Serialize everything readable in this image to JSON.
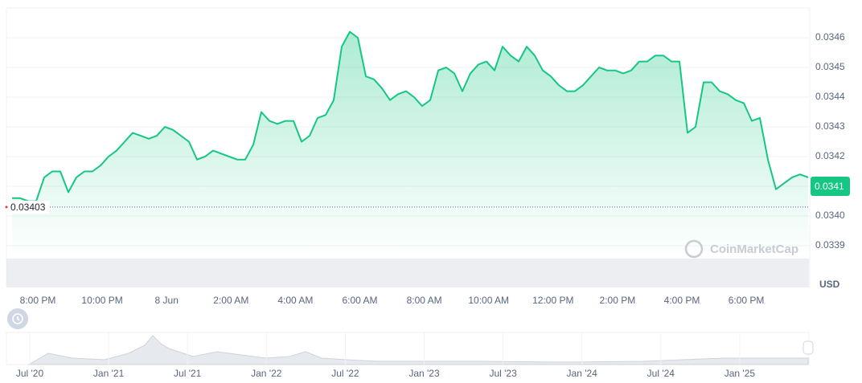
{
  "chart_data": {
    "type": "area",
    "color": "#16c784",
    "values": [
      0.03406,
      0.03406,
      0.03405,
      0.03405,
      0.03413,
      0.03415,
      0.03415,
      0.03408,
      0.03413,
      0.03415,
      0.03415,
      0.03417,
      0.0342,
      0.03422,
      0.03425,
      0.03428,
      0.03427,
      0.03426,
      0.03427,
      0.0343,
      0.03429,
      0.03427,
      0.03425,
      0.03419,
      0.0342,
      0.03422,
      0.03421,
      0.0342,
      0.03419,
      0.03419,
      0.03424,
      0.03435,
      0.03432,
      0.03431,
      0.03432,
      0.03432,
      0.03425,
      0.03427,
      0.03433,
      0.03434,
      0.03439,
      0.03457,
      0.03462,
      0.0346,
      0.03447,
      0.03446,
      0.03443,
      0.03439,
      0.03441,
      0.03442,
      0.0344,
      0.03437,
      0.03439,
      0.03449,
      0.0345,
      0.03448,
      0.03442,
      0.03448,
      0.03451,
      0.03452,
      0.03449,
      0.03457,
      0.03454,
      0.03452,
      0.03457,
      0.03454,
      0.03449,
      0.03447,
      0.03444,
      0.03442,
      0.03442,
      0.03444,
      0.03447,
      0.0345,
      0.03449,
      0.03449,
      0.03448,
      0.03449,
      0.03452,
      0.03452,
      0.03454,
      0.03454,
      0.03452,
      0.03452,
      0.03428,
      0.0343,
      0.03445,
      0.03445,
      0.03442,
      0.03441,
      0.03439,
      0.03438,
      0.03432,
      0.03433,
      0.03419,
      0.03409,
      0.03411,
      0.03413,
      0.03414,
      0.03413
    ],
    "ylim": [
      0.0339,
      0.0347
    ],
    "yticks": [
      {
        "value": 0.0339,
        "label": "0.0339"
      },
      {
        "value": 0.034,
        "label": "0.0340"
      },
      0.0341,
      0.0342,
      0.0343,
      0.0344,
      0.0345,
      0.0346
    ],
    "grid": true,
    "xtick_labels": [
      "8:00 PM",
      "10:00 PM",
      "8 Jun",
      "2:00 AM",
      "4:00 AM",
      "6:00 AM",
      "8:00 AM",
      "10:00 AM",
      "12:00 PM",
      "2:00 PM",
      "4:00 PM",
      "6:00 PM"
    ],
    "reference_price": 0.03403,
    "current_price": 0.0341,
    "currency": "USD",
    "watermark": "CoinMarketCap",
    "navigator_labels": [
      "Jul '20",
      "Jan '21",
      "Jul '21",
      "Jan '22",
      "Jul '22",
      "Jan '23",
      "Jul '23",
      "Jan '24",
      "Jul '24",
      "Jan '25"
    ]
  }
}
